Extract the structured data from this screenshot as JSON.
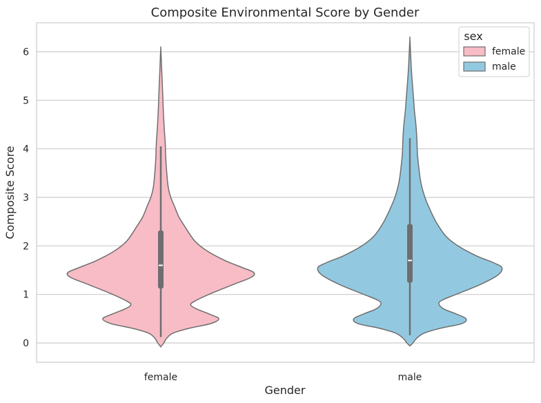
{
  "chart_data": {
    "type": "violin",
    "title": "Composite Environmental Score by Gender",
    "xlabel": "Gender",
    "ylabel": "Composite Score",
    "categories": [
      "female",
      "male"
    ],
    "ylim": [
      -0.4,
      6.6
    ],
    "yticks": [
      0,
      1,
      2,
      3,
      4,
      5,
      6
    ],
    "grid": "horizontal",
    "legend": {
      "title": "sex",
      "placement": "top-right",
      "entries": [
        {
          "label": "female",
          "color": "#f7bcc6"
        },
        {
          "label": "male",
          "color": "#92c9e0"
        }
      ]
    },
    "series": [
      {
        "name": "female",
        "color": "#f7bcc6",
        "box": {
          "whisker_low": 0.12,
          "q1": 1.12,
          "median": 1.6,
          "q3": 2.32,
          "whisker_high": 4.05
        },
        "profile": [
          [
            -0.08,
            0.0
          ],
          [
            0.0,
            0.03
          ],
          [
            0.1,
            0.06
          ],
          [
            0.2,
            0.12
          ],
          [
            0.3,
            0.28
          ],
          [
            0.4,
            0.5
          ],
          [
            0.5,
            0.58
          ],
          [
            0.6,
            0.48
          ],
          [
            0.7,
            0.36
          ],
          [
            0.78,
            0.3
          ],
          [
            0.85,
            0.33
          ],
          [
            1.0,
            0.48
          ],
          [
            1.2,
            0.72
          ],
          [
            1.35,
            0.9
          ],
          [
            1.45,
            0.93
          ],
          [
            1.55,
            0.82
          ],
          [
            1.7,
            0.64
          ],
          [
            1.9,
            0.46
          ],
          [
            2.1,
            0.34
          ],
          [
            2.4,
            0.24
          ],
          [
            2.6,
            0.18
          ],
          [
            2.8,
            0.14
          ],
          [
            3.0,
            0.1
          ],
          [
            3.2,
            0.075
          ],
          [
            3.5,
            0.06
          ],
          [
            3.8,
            0.05
          ],
          [
            4.1,
            0.045
          ],
          [
            4.4,
            0.035
          ],
          [
            4.8,
            0.025
          ],
          [
            5.2,
            0.018
          ],
          [
            5.6,
            0.01
          ],
          [
            5.9,
            0.004
          ],
          [
            6.08,
            0.0
          ]
        ]
      },
      {
        "name": "male",
        "color": "#92c9e0",
        "box": {
          "whisker_low": 0.16,
          "q1": 1.24,
          "median": 1.7,
          "q3": 2.45,
          "whisker_high": 4.22
        },
        "profile": [
          [
            -0.06,
            0.0
          ],
          [
            0.0,
            0.03
          ],
          [
            0.1,
            0.07
          ],
          [
            0.2,
            0.14
          ],
          [
            0.3,
            0.3
          ],
          [
            0.4,
            0.52
          ],
          [
            0.5,
            0.56
          ],
          [
            0.6,
            0.46
          ],
          [
            0.7,
            0.34
          ],
          [
            0.8,
            0.29
          ],
          [
            0.88,
            0.32
          ],
          [
            1.0,
            0.46
          ],
          [
            1.2,
            0.7
          ],
          [
            1.4,
            0.88
          ],
          [
            1.55,
            0.92
          ],
          [
            1.65,
            0.84
          ],
          [
            1.8,
            0.66
          ],
          [
            2.0,
            0.48
          ],
          [
            2.2,
            0.36
          ],
          [
            2.5,
            0.26
          ],
          [
            2.8,
            0.19
          ],
          [
            3.0,
            0.15
          ],
          [
            3.3,
            0.11
          ],
          [
            3.6,
            0.09
          ],
          [
            3.9,
            0.075
          ],
          [
            4.2,
            0.07
          ],
          [
            4.5,
            0.06
          ],
          [
            4.8,
            0.045
          ],
          [
            5.2,
            0.03
          ],
          [
            5.6,
            0.016
          ],
          [
            6.0,
            0.006
          ],
          [
            6.27,
            0.0
          ]
        ]
      }
    ]
  }
}
